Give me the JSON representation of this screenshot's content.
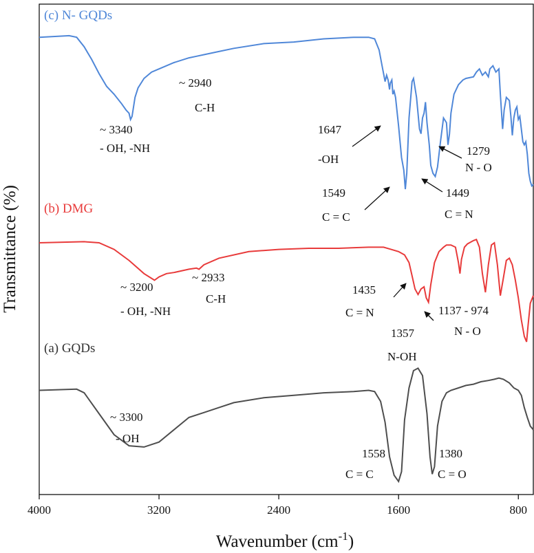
{
  "chart_data": {
    "type": "line",
    "xlabel": "Wavenumber (cm",
    "xlabel_sup": "-1",
    "xlabel_close": ")",
    "ylabel": "Transmittance (%)",
    "xlim": [
      4000,
      700
    ],
    "x_ticks": [
      {
        "value": 4000,
        "label": "4000"
      },
      {
        "value": 3200,
        "label": "3200"
      },
      {
        "value": 2400,
        "label": "2400"
      },
      {
        "value": 1600,
        "label": "1600"
      },
      {
        "value": 800,
        "label": "800"
      }
    ],
    "y_units": "transmittance, relative (0 = lowest point of panel, 100 = top of panel)",
    "series": [
      {
        "key": "gqds",
        "name": "(a) GQDs",
        "color": "#4d4d4d",
        "points": [
          [
            4000,
            74
          ],
          [
            3750,
            75
          ],
          [
            3700,
            72
          ],
          [
            3600,
            55
          ],
          [
            3500,
            38
          ],
          [
            3400,
            29
          ],
          [
            3300,
            28
          ],
          [
            3200,
            32
          ],
          [
            3100,
            42
          ],
          [
            3000,
            52
          ],
          [
            2900,
            56
          ],
          [
            2800,
            60
          ],
          [
            2700,
            64
          ],
          [
            2500,
            68
          ],
          [
            2300,
            70
          ],
          [
            2100,
            72
          ],
          [
            1900,
            73
          ],
          [
            1800,
            74
          ],
          [
            1760,
            73
          ],
          [
            1720,
            65
          ],
          [
            1690,
            48
          ],
          [
            1660,
            20
          ],
          [
            1630,
            5
          ],
          [
            1600,
            0
          ],
          [
            1580,
            8
          ],
          [
            1560,
            50
          ],
          [
            1530,
            76
          ],
          [
            1500,
            90
          ],
          [
            1470,
            92
          ],
          [
            1440,
            86
          ],
          [
            1410,
            55
          ],
          [
            1390,
            20
          ],
          [
            1375,
            6
          ],
          [
            1360,
            12
          ],
          [
            1340,
            45
          ],
          [
            1310,
            65
          ],
          [
            1280,
            72
          ],
          [
            1250,
            74
          ],
          [
            1200,
            76
          ],
          [
            1150,
            78
          ],
          [
            1100,
            79
          ],
          [
            1050,
            81
          ],
          [
            1000,
            82
          ],
          [
            960,
            83
          ],
          [
            930,
            84
          ],
          [
            900,
            83
          ],
          [
            860,
            80
          ],
          [
            830,
            76
          ],
          [
            800,
            74
          ],
          [
            780,
            70
          ],
          [
            760,
            60
          ],
          [
            740,
            52
          ],
          [
            720,
            45
          ],
          [
            700,
            42
          ]
        ]
      },
      {
        "key": "dmg",
        "name": "(b) DMG",
        "color": "#e83a3a",
        "points": [
          [
            4000,
            90
          ],
          [
            3700,
            91
          ],
          [
            3600,
            90
          ],
          [
            3500,
            84
          ],
          [
            3400,
            74
          ],
          [
            3300,
            62
          ],
          [
            3230,
            56
          ],
          [
            3200,
            59
          ],
          [
            3150,
            62
          ],
          [
            3100,
            63
          ],
          [
            3000,
            66
          ],
          [
            2950,
            67
          ],
          [
            2933,
            66
          ],
          [
            2900,
            70
          ],
          [
            2800,
            76
          ],
          [
            2600,
            82
          ],
          [
            2400,
            84
          ],
          [
            2200,
            85
          ],
          [
            2000,
            85
          ],
          [
            1800,
            86
          ],
          [
            1700,
            86
          ],
          [
            1650,
            84
          ],
          [
            1600,
            82
          ],
          [
            1560,
            79
          ],
          [
            1530,
            72
          ],
          [
            1510,
            60
          ],
          [
            1490,
            48
          ],
          [
            1470,
            43
          ],
          [
            1450,
            48
          ],
          [
            1430,
            50
          ],
          [
            1415,
            40
          ],
          [
            1400,
            36
          ],
          [
            1385,
            52
          ],
          [
            1360,
            72
          ],
          [
            1330,
            82
          ],
          [
            1300,
            86
          ],
          [
            1280,
            88
          ],
          [
            1250,
            88
          ],
          [
            1220,
            86
          ],
          [
            1200,
            72
          ],
          [
            1190,
            62
          ],
          [
            1180,
            75
          ],
          [
            1160,
            86
          ],
          [
            1140,
            89
          ],
          [
            1100,
            92
          ],
          [
            1080,
            93
          ],
          [
            1060,
            86
          ],
          [
            1040,
            62
          ],
          [
            1020,
            45
          ],
          [
            1000,
            70
          ],
          [
            980,
            88
          ],
          [
            960,
            90
          ],
          [
            940,
            70
          ],
          [
            920,
            42
          ],
          [
            900,
            58
          ],
          [
            880,
            74
          ],
          [
            860,
            76
          ],
          [
            840,
            70
          ],
          [
            820,
            56
          ],
          [
            800,
            40
          ],
          [
            780,
            20
          ],
          [
            760,
            5
          ],
          [
            745,
            0
          ],
          [
            735,
            15
          ],
          [
            720,
            35
          ],
          [
            700,
            42
          ]
        ]
      },
      {
        "key": "ngqds",
        "name": "(c) N- GQDs",
        "color": "#4f87d8",
        "points": [
          [
            4000,
            96
          ],
          [
            3800,
            97
          ],
          [
            3750,
            96
          ],
          [
            3700,
            90
          ],
          [
            3650,
            82
          ],
          [
            3600,
            73
          ],
          [
            3550,
            65
          ],
          [
            3500,
            60
          ],
          [
            3450,
            54
          ],
          [
            3420,
            50
          ],
          [
            3400,
            48
          ],
          [
            3390,
            44
          ],
          [
            3380,
            46
          ],
          [
            3360,
            58
          ],
          [
            3340,
            64
          ],
          [
            3300,
            70
          ],
          [
            3250,
            74
          ],
          [
            3200,
            76
          ],
          [
            3100,
            80
          ],
          [
            3000,
            83
          ],
          [
            2950,
            84
          ],
          [
            2900,
            85
          ],
          [
            2800,
            87
          ],
          [
            2700,
            89
          ],
          [
            2500,
            92
          ],
          [
            2300,
            93
          ],
          [
            2100,
            95
          ],
          [
            1900,
            96
          ],
          [
            1800,
            96
          ],
          [
            1760,
            95
          ],
          [
            1730,
            88
          ],
          [
            1710,
            78
          ],
          [
            1690,
            68
          ],
          [
            1680,
            72
          ],
          [
            1670,
            69
          ],
          [
            1660,
            63
          ],
          [
            1655,
            67
          ],
          [
            1645,
            69
          ],
          [
            1638,
            60
          ],
          [
            1630,
            62
          ],
          [
            1620,
            58
          ],
          [
            1600,
            40
          ],
          [
            1580,
            20
          ],
          [
            1565,
            12
          ],
          [
            1555,
            0
          ],
          [
            1545,
            10
          ],
          [
            1530,
            45
          ],
          [
            1510,
            68
          ],
          [
            1500,
            70
          ],
          [
            1480,
            58
          ],
          [
            1460,
            38
          ],
          [
            1450,
            35
          ],
          [
            1440,
            45
          ],
          [
            1430,
            48
          ],
          [
            1420,
            55
          ],
          [
            1410,
            42
          ],
          [
            1395,
            28
          ],
          [
            1385,
            15
          ],
          [
            1370,
            10
          ],
          [
            1355,
            8
          ],
          [
            1340,
            14
          ],
          [
            1320,
            30
          ],
          [
            1300,
            45
          ],
          [
            1280,
            42
          ],
          [
            1270,
            28
          ],
          [
            1260,
            35
          ],
          [
            1250,
            48
          ],
          [
            1230,
            60
          ],
          [
            1200,
            66
          ],
          [
            1170,
            69
          ],
          [
            1150,
            70
          ],
          [
            1100,
            71
          ],
          [
            1080,
            74
          ],
          [
            1060,
            76
          ],
          [
            1040,
            72
          ],
          [
            1020,
            74
          ],
          [
            1000,
            71
          ],
          [
            990,
            76
          ],
          [
            970,
            78
          ],
          [
            950,
            74
          ],
          [
            930,
            76
          ],
          [
            920,
            60
          ],
          [
            905,
            38
          ],
          [
            895,
            50
          ],
          [
            880,
            58
          ],
          [
            860,
            56
          ],
          [
            850,
            46
          ],
          [
            840,
            34
          ],
          [
            830,
            45
          ],
          [
            820,
            50
          ],
          [
            810,
            52
          ],
          [
            800,
            44
          ],
          [
            790,
            46
          ],
          [
            780,
            38
          ],
          [
            770,
            30
          ],
          [
            760,
            28
          ],
          [
            750,
            30
          ],
          [
            740,
            22
          ],
          [
            730,
            10
          ],
          [
            720,
            5
          ],
          [
            710,
            2
          ],
          [
            700,
            3
          ]
        ]
      }
    ],
    "annotations": [
      {
        "series": "ngqds",
        "lines": [
          "~ 3340",
          "- OH, -NH"
        ]
      },
      {
        "series": "ngqds",
        "lines": [
          "~ 2940",
          "C-H"
        ]
      },
      {
        "series": "ngqds",
        "lines": [
          "1647",
          "-OH"
        ]
      },
      {
        "series": "ngqds",
        "lines": [
          "1549",
          "C = C"
        ]
      },
      {
        "series": "ngqds",
        "lines": [
          "1449",
          "C = N"
        ]
      },
      {
        "series": "ngqds",
        "lines": [
          "1279",
          "N - O"
        ]
      },
      {
        "series": "dmg",
        "lines": [
          "~ 3200",
          "- OH, -NH"
        ]
      },
      {
        "series": "dmg",
        "lines": [
          "~ 2933",
          "C-H"
        ]
      },
      {
        "series": "dmg",
        "lines": [
          "1435",
          "C = N"
        ]
      },
      {
        "series": "dmg",
        "lines": [
          "1357",
          "N-OH"
        ]
      },
      {
        "series": "dmg",
        "lines": [
          "1137 - 974",
          "N - O"
        ]
      },
      {
        "series": "gqds",
        "lines": [
          "~ 3300",
          "- OH"
        ]
      },
      {
        "series": "gqds",
        "lines": [
          "1558",
          "C = C"
        ]
      },
      {
        "series": "gqds",
        "lines": [
          "1380",
          "C = O"
        ]
      }
    ]
  }
}
